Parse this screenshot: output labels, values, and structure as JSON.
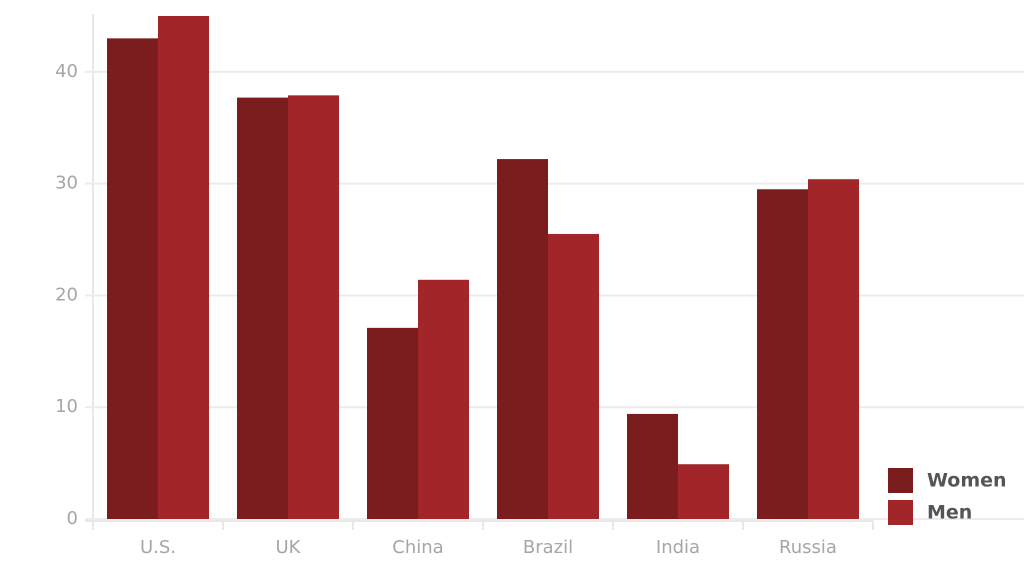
{
  "chart_data": {
    "type": "bar",
    "categories": [
      "U.S.",
      "UK",
      "China",
      "Brazil",
      "India",
      "Russia"
    ],
    "series": [
      {
        "name": "Women",
        "color": "#7b1c1e",
        "values": [
          43,
          37.7,
          17.1,
          32.2,
          9.4,
          29.5
        ]
      },
      {
        "name": "Men",
        "color": "#a12529",
        "values": [
          45,
          37.9,
          21.4,
          25.5,
          4.9,
          30.4
        ]
      }
    ],
    "ylim": [
      0,
      45
    ],
    "yticks": [
      0,
      10,
      20,
      30,
      40
    ],
    "grid": true,
    "legend": "bottom-right"
  }
}
